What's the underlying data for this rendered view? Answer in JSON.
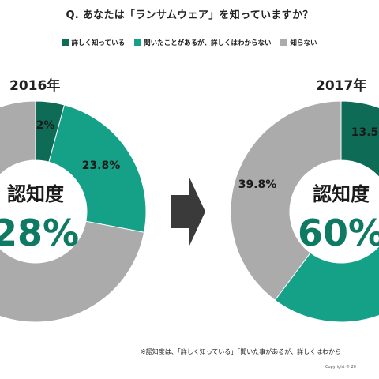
{
  "question": "Q. あなたは「ランサムウェア」を知っていますか？",
  "legend": [
    {
      "label": "詳しく知っている",
      "color": "#0e6b55"
    },
    {
      "label": "聞いたことがあるが、詳しくはわからない",
      "color": "#15a088"
    },
    {
      "label": "知らない",
      "color": "#ababab"
    }
  ],
  "center_label": "認知度",
  "footnote": "※認知度は、「詳しく知っている」「聞いた事があるが、詳しくはわから",
  "copyright": "Copyright © 20",
  "arrow_icon": "right-arrow-icon",
  "chart_data": [
    {
      "type": "pie",
      "title": "2016年",
      "awareness": "28%",
      "slices": [
        {
          "name": "詳しく知っている",
          "value": 4.2,
          "label": "4.2%",
          "color": "#0e6b55"
        },
        {
          "name": "聞いたことがあるが、詳しくはわからない",
          "value": 23.8,
          "label": "23.8%",
          "color": "#15a088"
        },
        {
          "name": "知らない",
          "value": 72.0,
          "label": "",
          "color": "#ababab"
        }
      ]
    },
    {
      "type": "pie",
      "title": "2017年",
      "awareness": "60%",
      "slices": [
        {
          "name": "詳しく知っている",
          "value": 13.5,
          "label": "13.5",
          "color": "#0e6b55"
        },
        {
          "name": "聞いたことがあるが、詳しくはわからない",
          "value": 46.7,
          "label": "",
          "color": "#15a088"
        },
        {
          "name": "知らない",
          "value": 39.8,
          "label": "39.8%",
          "color": "#ababab"
        }
      ]
    }
  ]
}
